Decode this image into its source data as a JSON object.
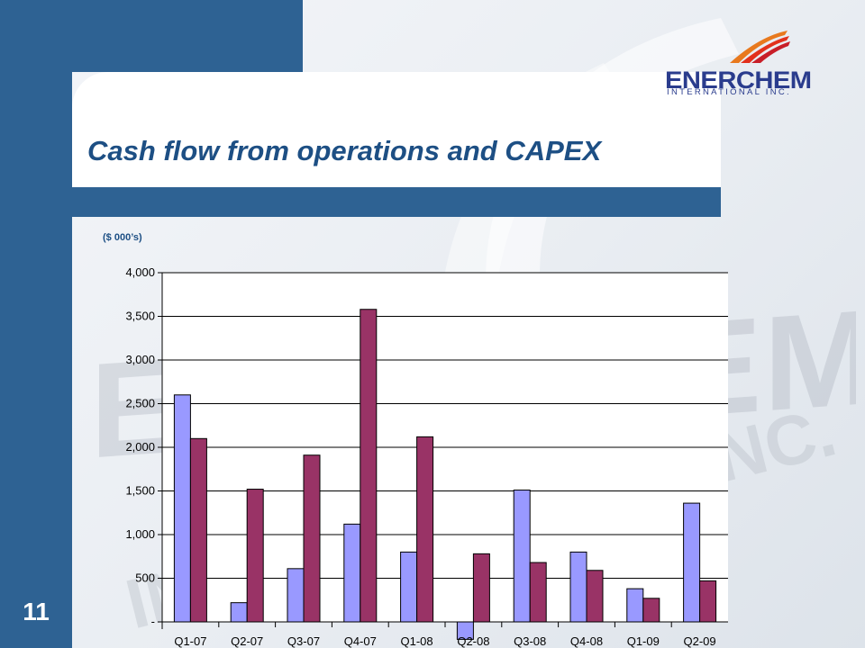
{
  "slide": {
    "title": "Cash flow from operations and CAPEX",
    "number": "11",
    "units": "($ 000’s)"
  },
  "logo": {
    "name": "ENERCHEM",
    "subtitle": "INTERNATIONAL INC."
  },
  "background": {
    "watermark_line1": "ENERCHEM",
    "watermark_line2": "INTERNATIONAL INC."
  },
  "colors": {
    "band_blue": "#2e6293",
    "title_blue": "#1d4f84",
    "logo_blue": "#2a3c8d",
    "series_1": "#9999ff",
    "series_2": "#993366"
  },
  "chart_data": {
    "type": "bar",
    "categories": [
      "Q1-07",
      "Q2-07",
      "Q3-07",
      "Q4-07",
      "Q1-08",
      "Q2-08",
      "Q3-08",
      "Q4-08",
      "Q1-09",
      "Q2-09"
    ],
    "series": [
      {
        "values": [
          2600,
          220,
          610,
          1120,
          800,
          -200,
          1510,
          800,
          380,
          1360
        ]
      },
      {
        "values": [
          2100,
          1520,
          1910,
          3580,
          2120,
          780,
          680,
          590,
          270,
          470
        ]
      }
    ],
    "ylim": [
      0,
      4000
    ],
    "yticks": [
      0,
      500,
      1000,
      1500,
      2000,
      2500,
      3000,
      3500,
      4000
    ],
    "ytick_labels": [
      "-",
      "500",
      "1,000",
      "1,500",
      "2,000",
      "2,500",
      "3,000",
      "3,500",
      "4,000"
    ],
    "grid": true,
    "legend": "none"
  }
}
